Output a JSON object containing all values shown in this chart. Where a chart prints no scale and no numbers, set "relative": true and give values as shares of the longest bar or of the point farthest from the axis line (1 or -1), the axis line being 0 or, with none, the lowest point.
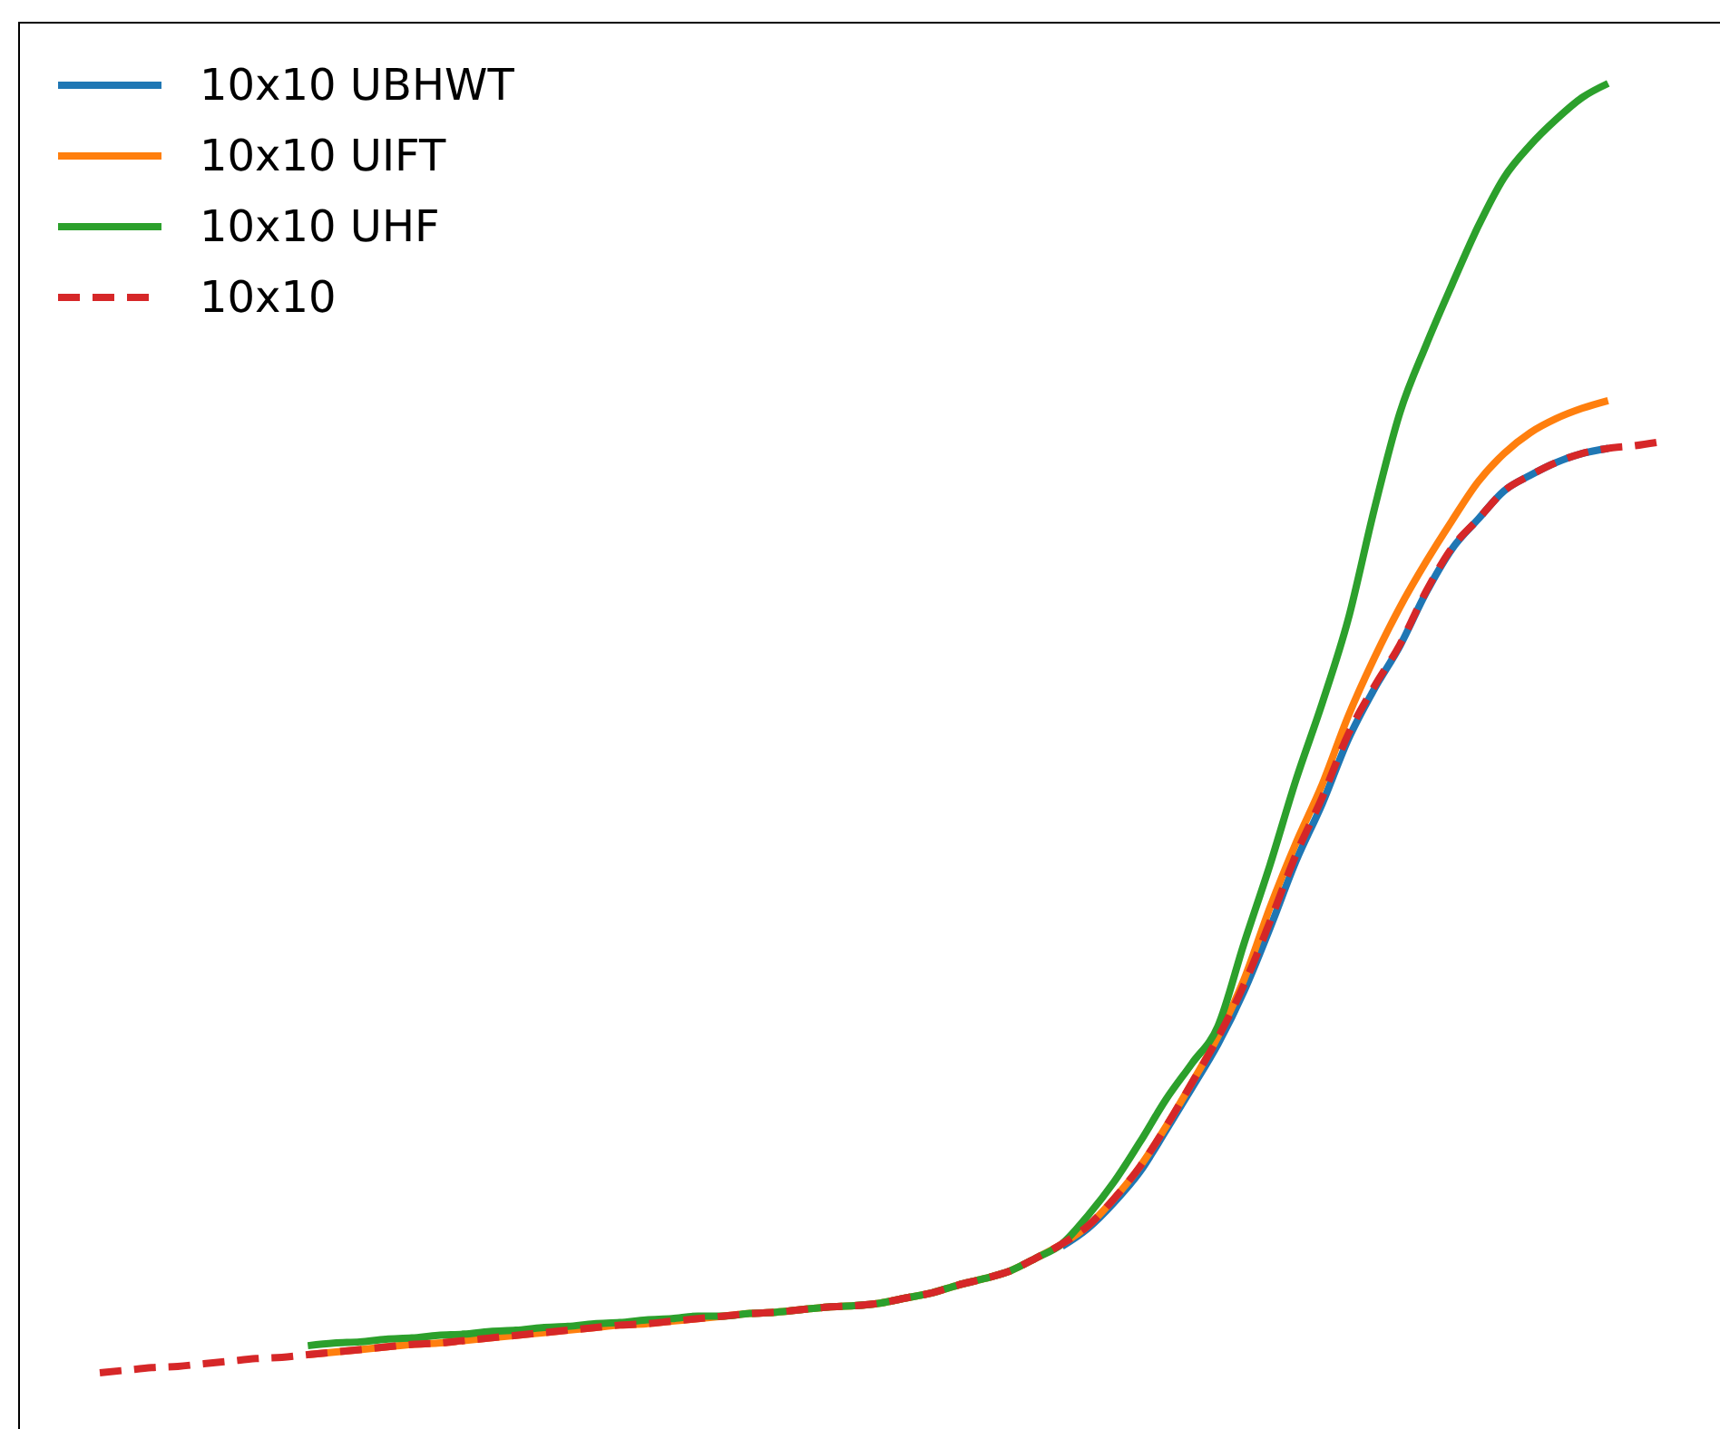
{
  "chart_data": {
    "type": "line",
    "relative": true,
    "legend": "top left",
    "categories": [
      null,
      null,
      null,
      null,
      null,
      null,
      null,
      null,
      null,
      null,
      null,
      null,
      null,
      null,
      null,
      null,
      null,
      null,
      null,
      null,
      null,
      null,
      null,
      null,
      null,
      null,
      null,
      null,
      null,
      null,
      null,
      null,
      null,
      null,
      null,
      null,
      null,
      null,
      null,
      null,
      null,
      null,
      null,
      null,
      null,
      null,
      null,
      null,
      null,
      null,
      null,
      null,
      null,
      null,
      null,
      null,
      null,
      null,
      null,
      null,
      null
    ],
    "series": [
      {
        "name": "10x10 UBHWT",
        "color": "#1f77b4",
        "line_style": "solid",
        "values": [
          null,
          null,
          null,
          null,
          null,
          null,
          null,
          null,
          null,
          null,
          null,
          null,
          null,
          null,
          null,
          null,
          null,
          null,
          null,
          null,
          null,
          null,
          null,
          null,
          null,
          null,
          null,
          null,
          null,
          null,
          null,
          null,
          null,
          null,
          null,
          null,
          null,
          0.098,
          0.112,
          0.132,
          0.156,
          0.188,
          0.221,
          0.255,
          0.296,
          0.345,
          0.397,
          0.441,
          0.491,
          0.53,
          0.564,
          0.605,
          0.639,
          0.662,
          0.684,
          0.696,
          0.706,
          0.713,
          0.717,
          null,
          null
        ]
      },
      {
        "name": "10x10 UIFT",
        "color": "#ff7f0e",
        "line_style": "solid",
        "values": [
          null,
          null,
          null,
          null,
          null,
          null,
          null,
          null,
          0.014,
          0.016,
          0.018,
          0.02,
          0.022,
          0.023,
          0.025,
          0.027,
          0.029,
          0.031,
          0.033,
          0.035,
          0.037,
          0.038,
          0.04,
          0.042,
          0.044,
          0.046,
          0.047,
          0.049,
          0.051,
          0.052,
          0.054,
          0.058,
          0.062,
          0.068,
          0.073,
          0.079,
          0.089,
          0.1,
          0.114,
          0.135,
          0.16,
          0.191,
          0.225,
          0.261,
          0.305,
          0.361,
          0.411,
          0.456,
          0.509,
          0.554,
          0.594,
          0.629,
          0.661,
          0.691,
          0.713,
          0.729,
          0.74,
          0.748,
          0.754,
          null,
          null
        ]
      },
      {
        "name": "10x10 UHF",
        "color": "#2ca02c",
        "line_style": "solid",
        "values": [
          null,
          null,
          null,
          null,
          null,
          null,
          null,
          null,
          0.021,
          0.023,
          0.024,
          0.026,
          0.027,
          0.029,
          0.03,
          0.032,
          0.033,
          0.035,
          0.036,
          0.038,
          0.039,
          0.041,
          0.042,
          0.044,
          0.044,
          0.046,
          0.047,
          0.049,
          0.051,
          0.052,
          0.054,
          0.058,
          0.062,
          0.068,
          0.073,
          0.079,
          0.089,
          0.1,
          0.122,
          0.148,
          0.179,
          0.212,
          0.24,
          0.269,
          0.333,
          0.394,
          0.46,
          0.519,
          0.584,
          0.669,
          0.745,
          0.797,
          0.844,
          0.889,
          0.927,
          0.952,
          0.972,
          0.989,
          1,
          null,
          null
        ]
      },
      {
        "name": "10x10",
        "color": "#d62728",
        "line_style": "dashed",
        "values": [
          0,
          0.002,
          0.004,
          0.005,
          0.007,
          0.009,
          0.011,
          0.012,
          0.014,
          0.016,
          0.018,
          0.02,
          0.022,
          0.023,
          0.025,
          0.027,
          0.029,
          0.031,
          0.033,
          0.035,
          0.037,
          0.038,
          0.04,
          0.042,
          0.044,
          0.046,
          0.047,
          0.049,
          0.051,
          0.052,
          0.054,
          0.058,
          0.062,
          0.068,
          0.073,
          0.079,
          0.089,
          0.1,
          0.114,
          0.135,
          0.16,
          0.191,
          0.225,
          0.26,
          0.301,
          0.35,
          0.402,
          0.446,
          0.495,
          0.532,
          0.565,
          0.606,
          0.64,
          0.662,
          0.684,
          0.696,
          0.706,
          0.713,
          0.717,
          0.719,
          0.722
        ]
      }
    ]
  }
}
